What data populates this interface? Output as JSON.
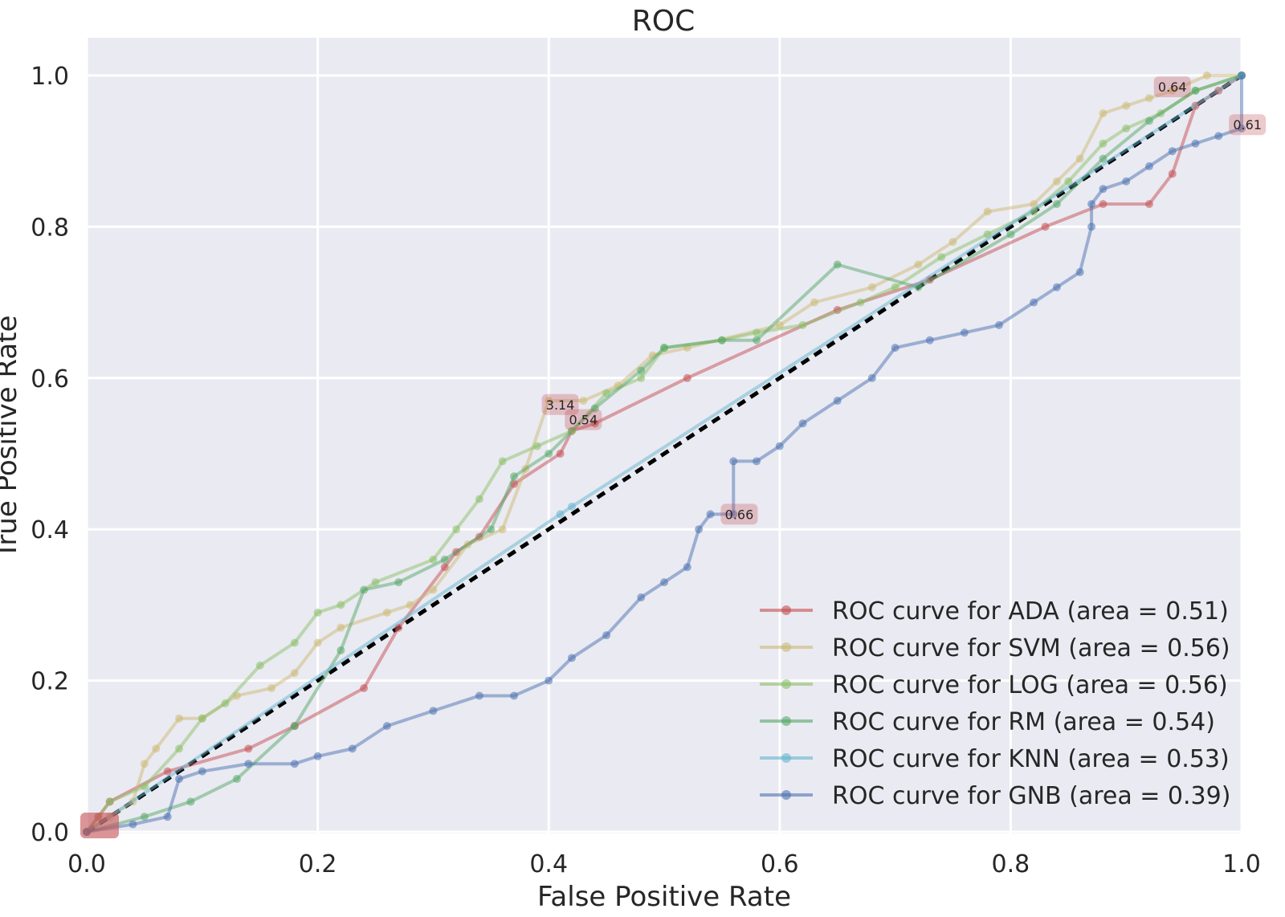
{
  "chart_data": {
    "type": "line",
    "title": "ROC",
    "xlabel": "False Positive Rate",
    "ylabel": "True Positive Rate",
    "xlim": [
      0.0,
      1.0
    ],
    "ylim": [
      -0.002,
      1.05
    ],
    "xticks": [
      "0.0",
      "0.2",
      "0.4",
      "0.6",
      "0.8",
      "1.0"
    ],
    "yticks": [
      "0.0",
      "0.2",
      "0.4",
      "0.6",
      "0.8",
      "1.0"
    ],
    "grid": true,
    "legend_position": "lower-right",
    "diagonal": {
      "x": [
        0,
        1
      ],
      "y": [
        0,
        1
      ],
      "color": "#000000",
      "style": "dashed"
    },
    "series": [
      {
        "name": "ROC curve for ADA (area = 0.51)",
        "color": "#c44e52",
        "x": [
          0.0,
          0.01,
          0.02,
          0.07,
          0.14,
          0.18,
          0.24,
          0.27,
          0.31,
          0.32,
          0.34,
          0.37,
          0.41,
          0.42,
          0.44,
          0.52,
          0.65,
          0.73,
          0.83,
          0.88,
          0.92,
          0.94,
          0.96,
          0.98,
          1.0
        ],
        "y": [
          0.0,
          0.02,
          0.04,
          0.08,
          0.11,
          0.14,
          0.19,
          0.27,
          0.35,
          0.37,
          0.39,
          0.46,
          0.5,
          0.53,
          0.54,
          0.6,
          0.69,
          0.73,
          0.8,
          0.83,
          0.83,
          0.87,
          0.96,
          0.98,
          1.0
        ]
      },
      {
        "name": "ROC curve for SVM (area = 0.56)",
        "color": "#ccb974",
        "x": [
          0.0,
          0.02,
          0.04,
          0.05,
          0.06,
          0.08,
          0.1,
          0.13,
          0.16,
          0.18,
          0.2,
          0.22,
          0.26,
          0.28,
          0.3,
          0.33,
          0.36,
          0.38,
          0.4,
          0.43,
          0.46,
          0.49,
          0.52,
          0.6,
          0.63,
          0.68,
          0.72,
          0.75,
          0.78,
          0.82,
          0.84,
          0.86,
          0.88,
          0.9,
          0.92,
          0.94,
          0.97,
          1.0
        ],
        "y": [
          0.0,
          0.02,
          0.04,
          0.09,
          0.11,
          0.15,
          0.15,
          0.18,
          0.19,
          0.21,
          0.25,
          0.27,
          0.29,
          0.3,
          0.32,
          0.38,
          0.4,
          0.48,
          0.57,
          0.57,
          0.59,
          0.63,
          0.64,
          0.67,
          0.7,
          0.72,
          0.75,
          0.78,
          0.82,
          0.83,
          0.86,
          0.89,
          0.95,
          0.96,
          0.97,
          0.98,
          1.0,
          1.0
        ]
      },
      {
        "name": "ROC curve for LOG (area = 0.56)",
        "color": "#8bbf67",
        "x": [
          0.0,
          0.02,
          0.05,
          0.08,
          0.1,
          0.12,
          0.15,
          0.18,
          0.2,
          0.22,
          0.25,
          0.3,
          0.32,
          0.34,
          0.36,
          0.39,
          0.42,
          0.45,
          0.48,
          0.5,
          0.55,
          0.58,
          0.62,
          0.67,
          0.7,
          0.74,
          0.78,
          0.82,
          0.85,
          0.88,
          0.9,
          0.93,
          0.96,
          1.0
        ],
        "y": [
          0.0,
          0.04,
          0.06,
          0.11,
          0.15,
          0.17,
          0.22,
          0.25,
          0.29,
          0.3,
          0.33,
          0.36,
          0.4,
          0.44,
          0.49,
          0.51,
          0.53,
          0.58,
          0.6,
          0.64,
          0.65,
          0.66,
          0.67,
          0.7,
          0.72,
          0.76,
          0.79,
          0.82,
          0.86,
          0.91,
          0.93,
          0.95,
          0.98,
          1.0
        ]
      },
      {
        "name": "ROC curve for RM (area = 0.54)",
        "color": "#55a868",
        "x": [
          0.0,
          0.05,
          0.09,
          0.13,
          0.18,
          0.22,
          0.24,
          0.27,
          0.31,
          0.35,
          0.37,
          0.4,
          0.44,
          0.48,
          0.5,
          0.55,
          0.58,
          0.65,
          0.72,
          0.8,
          0.84,
          0.88,
          0.92,
          0.96,
          1.0
        ],
        "y": [
          0.0,
          0.02,
          0.04,
          0.07,
          0.14,
          0.24,
          0.32,
          0.33,
          0.36,
          0.4,
          0.47,
          0.5,
          0.56,
          0.61,
          0.64,
          0.65,
          0.65,
          0.75,
          0.72,
          0.79,
          0.83,
          0.89,
          0.94,
          0.98,
          1.0
        ]
      },
      {
        "name": "ROC curve for KNN (area = 0.53)",
        "color": "#64b5cd",
        "x": [
          0.0,
          0.41,
          0.42,
          1.0
        ],
        "y": [
          0.0,
          0.42,
          0.43,
          1.0
        ]
      },
      {
        "name": "ROC curve for GNB (area = 0.39)",
        "color": "#4c72b0",
        "x": [
          0.0,
          0.04,
          0.07,
          0.08,
          0.1,
          0.14,
          0.18,
          0.2,
          0.23,
          0.26,
          0.3,
          0.34,
          0.37,
          0.4,
          0.42,
          0.45,
          0.48,
          0.5,
          0.52,
          0.53,
          0.54,
          0.56,
          0.56,
          0.58,
          0.6,
          0.62,
          0.65,
          0.68,
          0.7,
          0.73,
          0.76,
          0.79,
          0.82,
          0.84,
          0.86,
          0.87,
          0.87,
          0.88,
          0.9,
          0.92,
          0.94,
          0.96,
          0.98,
          1.0,
          1.0
        ],
        "y": [
          0.0,
          0.01,
          0.02,
          0.07,
          0.08,
          0.09,
          0.09,
          0.1,
          0.11,
          0.14,
          0.16,
          0.18,
          0.18,
          0.2,
          0.23,
          0.26,
          0.31,
          0.33,
          0.35,
          0.4,
          0.42,
          0.42,
          0.49,
          0.49,
          0.51,
          0.54,
          0.57,
          0.6,
          0.64,
          0.65,
          0.66,
          0.67,
          0.7,
          0.72,
          0.74,
          0.8,
          0.83,
          0.85,
          0.86,
          0.88,
          0.9,
          0.91,
          0.92,
          0.93,
          1.0
        ]
      }
    ],
    "annotations": [
      {
        "text": "3.14",
        "x": 0.41,
        "y": 0.565
      },
      {
        "text": "0.54",
        "x": 0.43,
        "y": 0.545
      },
      {
        "text": "0.66",
        "x": 0.565,
        "y": 0.42
      },
      {
        "text": "0.64",
        "x": 0.94,
        "y": 0.985
      },
      {
        "text": "0.61",
        "x": 1.005,
        "y": 0.935
      }
    ]
  }
}
